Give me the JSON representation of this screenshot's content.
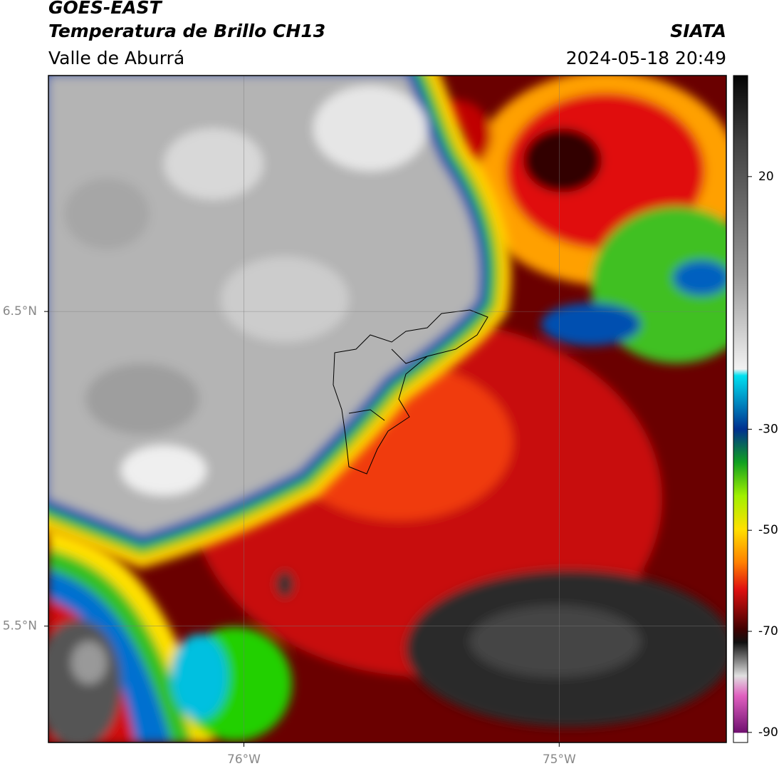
{
  "header": {
    "satellite": "GOES-EAST",
    "product": "Temperatura de Brillo CH13",
    "region": "Valle de Aburrá",
    "source": "SIATA",
    "datetime": "2024-05-18 20:49"
  },
  "map": {
    "xlim": [
      -76.62,
      -74.47
    ],
    "ylim": [
      5.13,
      7.25
    ],
    "xticks": [
      {
        "value": -76,
        "label": "76°W"
      },
      {
        "value": -75,
        "label": "75°W"
      }
    ],
    "yticks": [
      {
        "value": 6.5,
        "label": "6.5°N"
      },
      {
        "value": 5.5,
        "label": "5.5°N"
      }
    ]
  },
  "colorbar": {
    "lim": [
      -92,
      40
    ],
    "ticks": [
      20,
      -30,
      -50,
      -70,
      -90
    ]
  }
}
